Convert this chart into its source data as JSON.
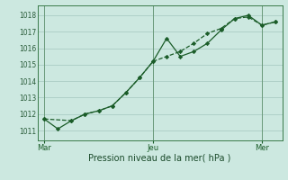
{
  "background_color": "#cce8e0",
  "grid_color": "#aaccc4",
  "line_color": "#1a5c28",
  "marker_color": "#1a5c28",
  "xlabel": "Pression niveau de la mer( hPa )",
  "ylim": [
    1010.4,
    1018.6
  ],
  "yticks": [
    1011,
    1012,
    1013,
    1014,
    1015,
    1016,
    1017,
    1018
  ],
  "xtick_positions": [
    0,
    8,
    16
  ],
  "xtick_labels": [
    "Mar",
    "Jeu",
    "Mer"
  ],
  "vline_positions": [
    0,
    8,
    16
  ],
  "series1_x": [
    0,
    2,
    3,
    4,
    5,
    6,
    7,
    8,
    9,
    10,
    11,
    12,
    13,
    14,
    15,
    16,
    17
  ],
  "series1_y": [
    1011.7,
    1011.6,
    1012.0,
    1012.2,
    1012.5,
    1013.3,
    1014.2,
    1015.2,
    1015.5,
    1015.8,
    1016.3,
    1016.9,
    1017.2,
    1017.8,
    1017.9,
    1017.4,
    1017.6
  ],
  "series2_x": [
    0,
    1,
    2,
    3,
    4,
    5,
    6,
    7,
    8,
    9,
    10,
    11,
    12,
    13,
    14,
    15,
    16,
    17
  ],
  "series2_y": [
    1011.7,
    1011.1,
    1011.6,
    1012.0,
    1012.2,
    1012.5,
    1013.3,
    1014.2,
    1015.2,
    1016.6,
    1015.5,
    1015.8,
    1016.3,
    1017.1,
    1017.8,
    1018.0,
    1017.4,
    1017.6
  ],
  "figsize": [
    3.2,
    2.0
  ],
  "dpi": 100
}
